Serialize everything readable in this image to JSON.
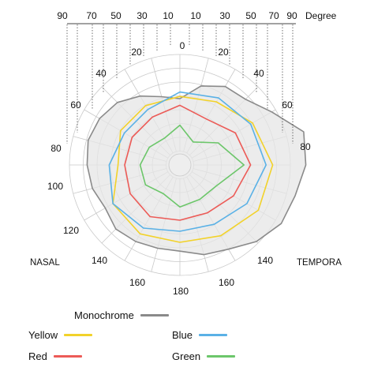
{
  "chart_data": {
    "type": "radar",
    "unit_label": "Degree",
    "top_scale_ticks": [
      "90",
      "70",
      "50",
      "30",
      "10",
      "10",
      "30",
      "50",
      "70",
      "90"
    ],
    "angle_labels": [
      "0",
      "20",
      "40",
      "60",
      "80",
      "100",
      "120",
      "140",
      "160",
      "180",
      "160",
      "140",
      "80",
      "60",
      "40",
      "20"
    ],
    "rings": 8,
    "spokes": 24,
    "side_labels": {
      "left": "NASAL",
      "right": "TEMPORA"
    },
    "series": [
      {
        "name": "Monochrome",
        "color": "#8a8a8a",
        "fill": "#e6e6e6",
        "points": [
          [
            0,
            0.6
          ],
          [
            15,
            0.74
          ],
          [
            30,
            0.82
          ],
          [
            45,
            0.84
          ],
          [
            60,
            0.96
          ],
          [
            75,
            1.16
          ],
          [
            90,
            1.14
          ],
          [
            105,
            1.08
          ],
          [
            120,
            1.06
          ],
          [
            135,
            0.98
          ],
          [
            150,
            0.88
          ],
          [
            165,
            0.84
          ],
          [
            180,
            0.78
          ],
          [
            195,
            0.78
          ],
          [
            210,
            0.8
          ],
          [
            225,
            0.82
          ],
          [
            240,
            0.78
          ],
          [
            255,
            0.82
          ],
          [
            270,
            0.84
          ],
          [
            285,
            0.86
          ],
          [
            300,
            0.84
          ],
          [
            315,
            0.8
          ],
          [
            330,
            0.72
          ],
          [
            345,
            0.64
          ]
        ]
      },
      {
        "name": "Yellow",
        "color": "#f2d22a",
        "points": [
          [
            0,
            0.62
          ],
          [
            30,
            0.66
          ],
          [
            60,
            0.76
          ],
          [
            90,
            0.84
          ],
          [
            120,
            0.82
          ],
          [
            150,
            0.74
          ],
          [
            180,
            0.7
          ],
          [
            210,
            0.72
          ],
          [
            240,
            0.7
          ],
          [
            270,
            0.56
          ],
          [
            300,
            0.62
          ],
          [
            330,
            0.62
          ]
        ]
      },
      {
        "name": "Blue",
        "color": "#5ab1e6",
        "points": [
          [
            0,
            0.66
          ],
          [
            30,
            0.7
          ],
          [
            60,
            0.74
          ],
          [
            90,
            0.78
          ],
          [
            120,
            0.7
          ],
          [
            150,
            0.62
          ],
          [
            180,
            0.6
          ],
          [
            210,
            0.66
          ],
          [
            240,
            0.7
          ],
          [
            270,
            0.64
          ],
          [
            300,
            0.58
          ],
          [
            330,
            0.58
          ]
        ]
      },
      {
        "name": "Red",
        "color": "#ec5b57",
        "points": [
          [
            0,
            0.54
          ],
          [
            30,
            0.48
          ],
          [
            60,
            0.58
          ],
          [
            90,
            0.64
          ],
          [
            120,
            0.56
          ],
          [
            150,
            0.5
          ],
          [
            180,
            0.5
          ],
          [
            210,
            0.54
          ],
          [
            240,
            0.52
          ],
          [
            270,
            0.5
          ],
          [
            300,
            0.5
          ],
          [
            330,
            0.5
          ]
        ]
      },
      {
        "name": "Green",
        "color": "#6cc66a",
        "points": [
          [
            0,
            0.36
          ],
          [
            30,
            0.24
          ],
          [
            60,
            0.4
          ],
          [
            90,
            0.58
          ],
          [
            120,
            0.38
          ],
          [
            150,
            0.36
          ],
          [
            180,
            0.38
          ],
          [
            210,
            0.3
          ],
          [
            240,
            0.36
          ],
          [
            270,
            0.36
          ],
          [
            300,
            0.32
          ],
          [
            330,
            0.28
          ]
        ]
      }
    ]
  },
  "legend": {
    "monochrome": {
      "label": "Monochrome",
      "color": "#8a8a8a"
    },
    "yellow": {
      "label": "Yellow",
      "color": "#f2d22a"
    },
    "blue": {
      "label": "Blue",
      "color": "#5ab1e6"
    },
    "red": {
      "label": "Red",
      "color": "#ec5b57"
    },
    "green": {
      "label": "Green",
      "color": "#6cc66a"
    }
  }
}
